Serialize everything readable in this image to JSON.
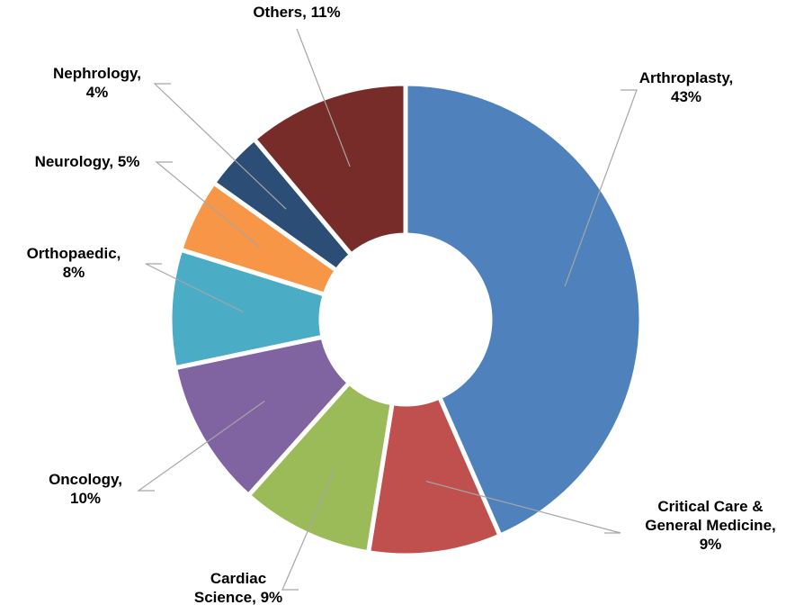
{
  "chart_data": {
    "type": "donut",
    "values": [
      43,
      9,
      9,
      10,
      8,
      5,
      4,
      11
    ],
    "value_labels": [
      "Arthroplasty, 43%",
      "Critical Care & General Medicine, 9%",
      "Cardiac Science, 9%",
      "Oncology, 10%",
      "Orthopaedic, 8%",
      "Neurology, 5%",
      "Nephrology, 4%",
      "Others, 11%"
    ],
    "colors": [
      "#4f81bd",
      "#c0504d",
      "#9bbb59",
      "#8064a2",
      "#4bacc6",
      "#f79646",
      "#2c4d75",
      "#772c2a"
    ]
  }
}
